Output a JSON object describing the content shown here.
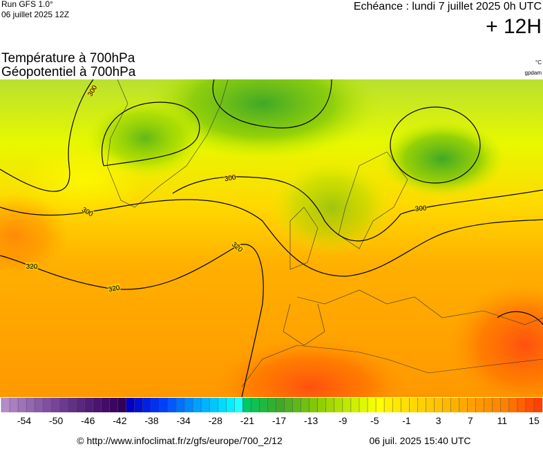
{
  "header": {
    "run": "Run GFS 1.0°",
    "run_date": "06 juillet 2025 12Z",
    "valid": "Echéance : lundi 7 juillet 2025 0h UTC",
    "lead": "+ 12H",
    "title_1": "Température à 700hPa",
    "title_2": "Géopotentiel à 700hPa",
    "unit_1": "°C",
    "unit_2": "gpdam"
  },
  "contour_labels": [
    300,
    300,
    300,
    300,
    320,
    320,
    320
  ],
  "colorbar": {
    "labels": [
      -54,
      -50,
      -46,
      -42,
      -38,
      -34,
      -28,
      -21,
      -17,
      -13,
      -9,
      -5,
      -1,
      3,
      7,
      11,
      15
    ],
    "colors": [
      "#b48cc8",
      "#a97fc0",
      "#9e73b8",
      "#9467b0",
      "#8a5ba8",
      "#8050a0",
      "#764598",
      "#6c3a90",
      "#633088",
      "#5a2680",
      "#521c78",
      "#4a1470",
      "#420c68",
      "#3a0660",
      "#330058",
      "#0000c8",
      "#0010d8",
      "#0020e8",
      "#0030f0",
      "#0040f8",
      "#0058ff",
      "#0070ff",
      "#0088ff",
      "#00a0ff",
      "#00b4ff",
      "#00c8ff",
      "#00dcff",
      "#00f0ff",
      "#20ffff",
      "#00c864",
      "#10c050",
      "#20b840",
      "#30b030",
      "#40a828",
      "#50b020",
      "#60b818",
      "#70c010",
      "#80c808",
      "#90d000",
      "#a0d800",
      "#b0e000",
      "#c0e800",
      "#d0f000",
      "#e0f800",
      "#f0ff00",
      "#ffff00",
      "#fff000",
      "#ffe800",
      "#ffe000",
      "#ffd800",
      "#ffd000",
      "#ffc800",
      "#ffc000",
      "#ffb800",
      "#ffb000",
      "#ffa800",
      "#ffa000",
      "#ff9800",
      "#ff9000",
      "#ff8800",
      "#ff8000",
      "#ff7000",
      "#ff6000",
      "#ff5000",
      "#ff4000"
    ]
  },
  "footer": {
    "url": "© http://www.infoclimat.fr/z/gfs/europe/700_2/12",
    "generated": "06 juil. 2025 15:40 UTC"
  }
}
